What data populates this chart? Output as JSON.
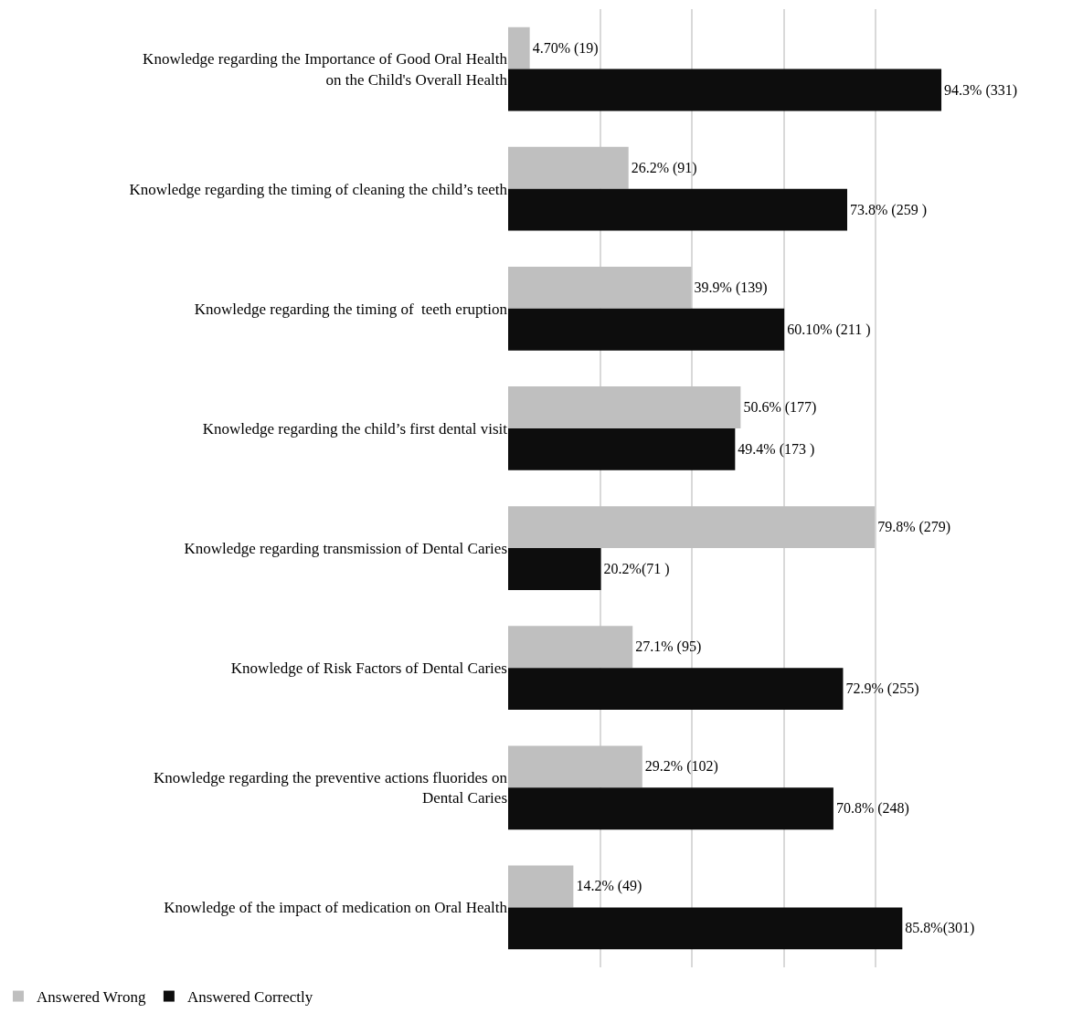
{
  "chart_data": {
    "type": "bar",
    "orientation": "horizontal",
    "categories": [
      "Knowledge regarding the Importance of Good Oral Health\non the Child's Overall Health",
      "Knowledge regarding the timing of cleaning the child’s teeth",
      "Knowledge regarding the timing of  teeth eruption",
      "Knowledge regarding the child’s first dental visit",
      "Knowledge regarding transmission of Dental Caries",
      "Knowledge of Risk Factors of Dental Caries",
      "Knowledge regarding the preventive actions fluorides on\nDental Caries",
      "Knowledge of the impact of medication on Oral Health"
    ],
    "series": [
      {
        "name": "Answered Wrong",
        "color": "#bfbfbf",
        "values": [
          4.7,
          26.2,
          39.9,
          50.6,
          79.8,
          27.1,
          29.2,
          14.2
        ],
        "value_labels": [
          "4.70% (19)",
          "26.2% (91)",
          "39.9% (139)",
          "50.6% (177)",
          "79.8% (279)",
          "27.1% (95)",
          "29.2% (102)",
          "14.2% (49)"
        ]
      },
      {
        "name": "Answered Correctly",
        "color": "#0d0d0d",
        "values": [
          94.3,
          73.8,
          60.1,
          49.4,
          20.2,
          72.9,
          70.8,
          85.8
        ],
        "value_labels": [
          "94.3% (331)",
          "73.8% (259 )",
          "60.10% (211 )",
          "49.4% (173 )",
          "20.2%(71 )",
          "72.9% (255)",
          "70.8% (248)",
          "85.8%(301)"
        ]
      }
    ],
    "grid": "x",
    "tick_labels": "y",
    "legend": "bottom left"
  }
}
